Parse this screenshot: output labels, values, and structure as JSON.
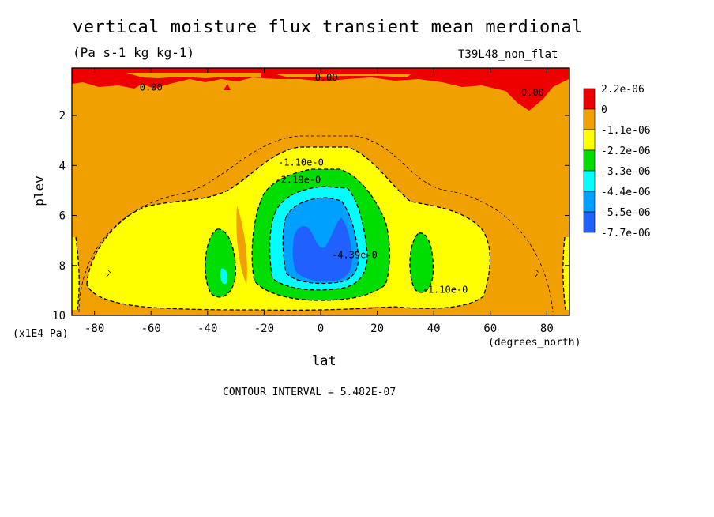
{
  "chart_data": {
    "type": "heatmap",
    "title": "vertical moisture flux transient mean merdional",
    "subtitle": "(Pa s-1 kg kg-1)",
    "run_label": "T39L48_non_flat",
    "xlabel": "lat",
    "x_unit": "(degrees_north)",
    "ylabel": "plev",
    "y_unit": "(x1E4 Pa)",
    "xlim": [
      -88,
      88
    ],
    "ylim": [
      10,
      0.1
    ],
    "y_inverted": true,
    "x_ticks": [
      "-80",
      "-60",
      "-40",
      "-20",
      "0",
      "20",
      "40",
      "60",
      "80"
    ],
    "x_tick_values": [
      -80,
      -60,
      -40,
      -20,
      0,
      20,
      40,
      60,
      80
    ],
    "y_ticks": [
      "2",
      "4",
      "6",
      "8",
      "10"
    ],
    "y_tick_values": [
      2,
      4,
      6,
      8,
      10
    ],
    "footer": "CONTOUR INTERVAL = 5.482E-07",
    "contour_labels": [
      {
        "text": "0.00",
        "x": -60,
        "y": 1.0
      },
      {
        "text": "0.00",
        "x": 2,
        "y": 0.6
      },
      {
        "text": "0.00",
        "x": 75,
        "y": 1.2
      },
      {
        "text": "-1.10e-0",
        "x": -7,
        "y": 4.0
      },
      {
        "text": "-2.19e-0",
        "x": -8,
        "y": 4.7
      },
      {
        "text": "-4.39e-0",
        "x": 12,
        "y": 7.7
      },
      {
        "text": "-1.10e-0",
        "x": 44,
        "y": 9.1
      }
    ],
    "legend": {
      "placement": "right",
      "labels": [
        "2.2e-06",
        "0",
        "-1.1e-06",
        "-2.2e-06",
        "-3.3e-06",
        "-4.4e-06",
        "-5.5e-06",
        "-7.7e-06"
      ],
      "colors": [
        "#ee0000",
        "#f0a000",
        "#ffff00",
        "#00dd00",
        "#00ffff",
        "#00a0ff",
        "#2060ff"
      ]
    }
  }
}
